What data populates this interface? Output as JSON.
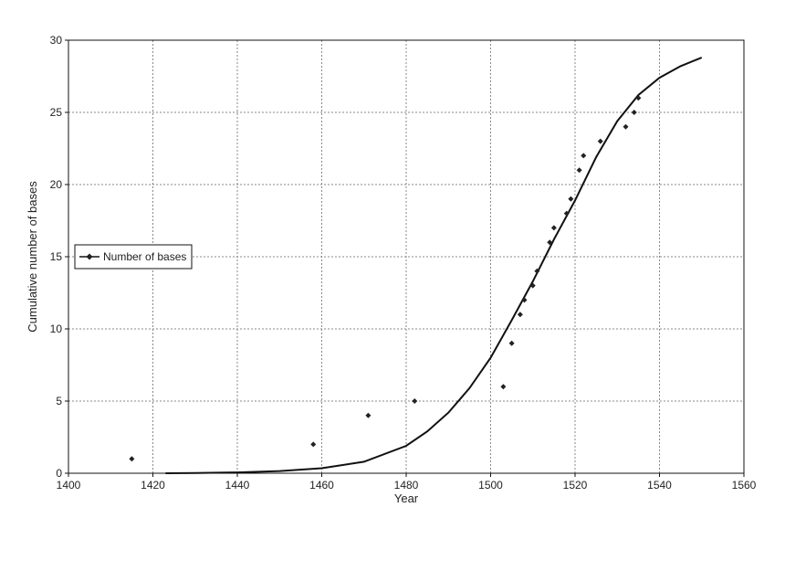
{
  "chart_data": {
    "type": "scatter",
    "xlabel": "Year",
    "ylabel": "Cumulative number of bases",
    "xlim": [
      1400,
      1560
    ],
    "ylim": [
      0,
      30
    ],
    "x_ticks": [
      1400,
      1420,
      1440,
      1460,
      1480,
      1500,
      1520,
      1540,
      1560
    ],
    "y_ticks": [
      0,
      5,
      10,
      15,
      20,
      25,
      30
    ],
    "grid": true,
    "legend_position": "left-middle",
    "series": [
      {
        "name": "Number of bases",
        "kind": "points",
        "x": [
          1415,
          1458,
          1471,
          1482,
          1503,
          1505,
          1507,
          1508,
          1510,
          1511,
          1514,
          1515,
          1518,
          1519,
          1521,
          1522,
          1526,
          1532,
          1534,
          1535
        ],
        "y": [
          1,
          2,
          4,
          5,
          6,
          9,
          11,
          12,
          13,
          14,
          16,
          17,
          18,
          19,
          21,
          22,
          23,
          24,
          25,
          26
        ]
      },
      {
        "name": "",
        "kind": "curve",
        "x": [
          1423,
          1430,
          1440,
          1450,
          1460,
          1470,
          1480,
          1485,
          1490,
          1495,
          1500,
          1505,
          1510,
          1515,
          1520,
          1525,
          1530,
          1535,
          1540,
          1545,
          1550
        ],
        "y": [
          0,
          0.02,
          0.06,
          0.15,
          0.35,
          0.8,
          1.9,
          2.9,
          4.2,
          5.9,
          8.0,
          10.6,
          13.3,
          16.2,
          18.9,
          21.9,
          24.4,
          26.2,
          27.4,
          28.2,
          28.8
        ]
      }
    ],
    "colors": {
      "line": "#111111",
      "grid": "#888888",
      "marker": "#222222"
    }
  }
}
